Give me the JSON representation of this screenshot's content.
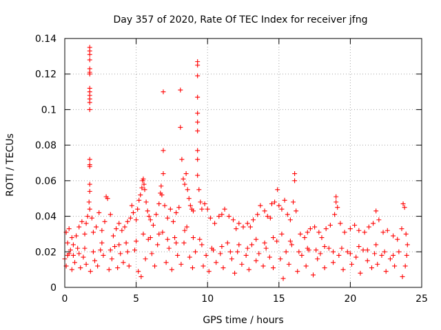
{
  "chart_data": {
    "type": "scatter",
    "title": "Day 357 of 2020, Rate Of TEC Index for receiver jfng",
    "xlabel": "GPS time / hours",
    "ylabel": "ROTI / TECUs",
    "xlim": [
      0,
      25
    ],
    "ylim": [
      0,
      0.14
    ],
    "xticks": [
      0,
      5,
      10,
      15,
      20,
      25
    ],
    "xtick_labels": [
      "0",
      "5",
      "10",
      "15",
      "20",
      "25"
    ],
    "yticks": [
      0,
      0.02,
      0.04,
      0.06,
      0.08,
      0.1,
      0.12,
      0.14
    ],
    "ytick_labels": [
      "0",
      "0.02",
      "0.04",
      "0.06",
      "0.08",
      "0.1",
      "0.12",
      "0.14"
    ],
    "grid": true,
    "marker": "+",
    "color": "#ff0000",
    "series": [
      {
        "name": "ROTI",
        "points": [
          [
            0.0,
            0.016
          ],
          [
            0.1,
            0.031
          ],
          [
            0.2,
            0.025
          ],
          [
            0.3,
            0.033
          ],
          [
            0.4,
            0.021
          ],
          [
            0.5,
            0.028
          ],
          [
            0.6,
            0.018
          ],
          [
            0.8,
            0.029
          ],
          [
            1.0,
            0.034
          ],
          [
            1.2,
            0.037
          ],
          [
            1.4,
            0.03
          ],
          [
            1.5,
            0.036
          ],
          [
            1.6,
            0.04
          ],
          [
            1.7,
            0.048
          ],
          [
            1.75,
            0.135
          ],
          [
            1.75,
            0.133
          ],
          [
            1.75,
            0.131
          ],
          [
            1.75,
            0.128
          ],
          [
            1.75,
            0.123
          ],
          [
            1.75,
            0.121
          ],
          [
            1.75,
            0.12
          ],
          [
            1.75,
            0.112
          ],
          [
            1.75,
            0.11
          ],
          [
            1.75,
            0.108
          ],
          [
            1.75,
            0.106
          ],
          [
            1.75,
            0.104
          ],
          [
            1.75,
            0.1
          ],
          [
            1.75,
            0.072
          ],
          [
            1.75,
            0.069
          ],
          [
            1.75,
            0.068
          ],
          [
            1.75,
            0.058
          ],
          [
            1.75,
            0.054
          ],
          [
            1.75,
            0.044
          ],
          [
            1.9,
            0.039
          ],
          [
            2.0,
            0.031
          ],
          [
            2.2,
            0.034
          ],
          [
            2.4,
            0.042
          ],
          [
            2.6,
            0.032
          ],
          [
            2.8,
            0.037
          ],
          [
            2.9,
            0.051
          ],
          [
            3.0,
            0.05
          ],
          [
            3.2,
            0.041
          ],
          [
            3.4,
            0.029
          ],
          [
            3.6,
            0.033
          ],
          [
            3.8,
            0.036
          ],
          [
            4.0,
            0.032
          ],
          [
            4.2,
            0.034
          ],
          [
            4.4,
            0.037
          ],
          [
            4.6,
            0.039
          ],
          [
            4.7,
            0.046
          ],
          [
            4.8,
            0.042
          ],
          [
            5.0,
            0.038
          ],
          [
            5.1,
            0.044
          ],
          [
            5.2,
            0.049
          ],
          [
            5.3,
            0.052
          ],
          [
            5.4,
            0.056
          ],
          [
            5.45,
            0.06
          ],
          [
            5.5,
            0.061
          ],
          [
            5.55,
            0.058
          ],
          [
            5.6,
            0.055
          ],
          [
            5.7,
            0.048
          ],
          [
            5.8,
            0.043
          ],
          [
            5.9,
            0.04
          ],
          [
            6.0,
            0.038
          ],
          [
            6.2,
            0.035
          ],
          [
            6.4,
            0.041
          ],
          [
            6.6,
            0.047
          ],
          [
            6.7,
            0.053
          ],
          [
            6.75,
            0.057
          ],
          [
            6.8,
            0.052
          ],
          [
            6.9,
            0.11
          ],
          [
            6.9,
            0.077
          ],
          [
            6.9,
            0.064
          ],
          [
            7.0,
            0.046
          ],
          [
            7.2,
            0.039
          ],
          [
            7.4,
            0.044
          ],
          [
            7.6,
            0.037
          ],
          [
            7.8,
            0.042
          ],
          [
            8.0,
            0.045
          ],
          [
            8.1,
            0.111
          ],
          [
            8.1,
            0.09
          ],
          [
            8.2,
            0.072
          ],
          [
            8.3,
            0.061
          ],
          [
            8.4,
            0.058
          ],
          [
            8.5,
            0.064
          ],
          [
            8.6,
            0.055
          ],
          [
            8.7,
            0.05
          ],
          [
            8.8,
            0.046
          ],
          [
            8.9,
            0.044
          ],
          [
            9.0,
            0.043
          ],
          [
            9.3,
            0.127
          ],
          [
            9.3,
            0.125
          ],
          [
            9.3,
            0.119
          ],
          [
            9.3,
            0.107
          ],
          [
            9.3,
            0.098
          ],
          [
            9.3,
            0.093
          ],
          [
            9.3,
            0.088
          ],
          [
            9.3,
            0.077
          ],
          [
            9.3,
            0.072
          ],
          [
            9.3,
            0.063
          ],
          [
            9.4,
            0.055
          ],
          [
            9.5,
            0.048
          ],
          [
            9.6,
            0.044
          ],
          [
            9.8,
            0.047
          ],
          [
            10.0,
            0.044
          ],
          [
            10.2,
            0.039
          ],
          [
            10.5,
            0.036
          ],
          [
            10.8,
            0.04
          ],
          [
            11.0,
            0.041
          ],
          [
            11.2,
            0.044
          ],
          [
            11.5,
            0.04
          ],
          [
            11.8,
            0.038
          ],
          [
            12.0,
            0.033
          ],
          [
            12.2,
            0.036
          ],
          [
            12.5,
            0.034
          ],
          [
            12.8,
            0.036
          ],
          [
            13.0,
            0.034
          ],
          [
            13.2,
            0.038
          ],
          [
            13.5,
            0.041
          ],
          [
            13.7,
            0.046
          ],
          [
            14.0,
            0.043
          ],
          [
            14.2,
            0.04
          ],
          [
            14.4,
            0.039
          ],
          [
            14.5,
            0.047
          ],
          [
            14.7,
            0.048
          ],
          [
            14.9,
            0.055
          ],
          [
            15.0,
            0.046
          ],
          [
            15.2,
            0.044
          ],
          [
            15.4,
            0.049
          ],
          [
            15.6,
            0.041
          ],
          [
            15.8,
            0.038
          ],
          [
            16.0,
            0.048
          ],
          [
            16.1,
            0.064
          ],
          [
            16.1,
            0.06
          ],
          [
            16.2,
            0.043
          ],
          [
            16.5,
            0.03
          ],
          [
            16.8,
            0.028
          ],
          [
            17.0,
            0.031
          ],
          [
            17.2,
            0.033
          ],
          [
            17.5,
            0.034
          ],
          [
            17.8,
            0.031
          ],
          [
            18.0,
            0.028
          ],
          [
            18.3,
            0.033
          ],
          [
            18.6,
            0.035
          ],
          [
            18.9,
            0.041
          ],
          [
            19.0,
            0.051
          ],
          [
            19.0,
            0.048
          ],
          [
            19.1,
            0.045
          ],
          [
            19.3,
            0.036
          ],
          [
            19.6,
            0.031
          ],
          [
            20.0,
            0.033
          ],
          [
            20.3,
            0.035
          ],
          [
            20.6,
            0.032
          ],
          [
            21.0,
            0.031
          ],
          [
            21.3,
            0.034
          ],
          [
            21.6,
            0.036
          ],
          [
            21.8,
            0.043
          ],
          [
            22.0,
            0.038
          ],
          [
            22.3,
            0.031
          ],
          [
            22.6,
            0.032
          ],
          [
            23.0,
            0.029
          ],
          [
            23.3,
            0.027
          ],
          [
            23.6,
            0.033
          ],
          [
            23.7,
            0.047
          ],
          [
            23.8,
            0.045
          ],
          [
            23.9,
            0.03
          ],
          [
            24.0,
            0.024
          ],
          [
            0.1,
            0.012
          ],
          [
            0.3,
            0.019
          ],
          [
            0.5,
            0.01
          ],
          [
            0.7,
            0.014
          ],
          [
            0.9,
            0.022
          ],
          [
            1.1,
            0.011
          ],
          [
            1.3,
            0.017
          ],
          [
            1.5,
            0.013
          ],
          [
            1.8,
            0.009
          ],
          [
            2.1,
            0.015
          ],
          [
            2.3,
            0.012
          ],
          [
            2.5,
            0.021
          ],
          [
            2.7,
            0.018
          ],
          [
            3.1,
            0.01
          ],
          [
            3.3,
            0.016
          ],
          [
            3.5,
            0.023
          ],
          [
            3.7,
            0.011
          ],
          [
            3.9,
            0.019
          ],
          [
            4.1,
            0.014
          ],
          [
            4.3,
            0.025
          ],
          [
            4.5,
            0.012
          ],
          [
            4.9,
            0.021
          ],
          [
            5.15,
            0.009
          ],
          [
            5.35,
            0.006
          ],
          [
            5.65,
            0.016
          ],
          [
            5.85,
            0.027
          ],
          [
            6.1,
            0.019
          ],
          [
            6.3,
            0.012
          ],
          [
            6.5,
            0.024
          ],
          [
            6.85,
            0.031
          ],
          [
            7.1,
            0.014
          ],
          [
            7.3,
            0.022
          ],
          [
            7.5,
            0.01
          ],
          [
            7.7,
            0.028
          ],
          [
            7.9,
            0.018
          ],
          [
            8.15,
            0.013
          ],
          [
            8.35,
            0.025
          ],
          [
            8.55,
            0.034
          ],
          [
            8.75,
            0.017
          ],
          [
            8.95,
            0.011
          ],
          [
            9.15,
            0.02
          ],
          [
            9.45,
            0.027
          ],
          [
            9.7,
            0.012
          ],
          [
            9.9,
            0.018
          ],
          [
            10.1,
            0.009
          ],
          [
            10.3,
            0.022
          ],
          [
            10.6,
            0.014
          ],
          [
            10.9,
            0.019
          ],
          [
            11.1,
            0.011
          ],
          [
            11.4,
            0.025
          ],
          [
            11.7,
            0.016
          ],
          [
            11.9,
            0.008
          ],
          [
            12.1,
            0.02
          ],
          [
            12.4,
            0.013
          ],
          [
            12.7,
            0.018
          ],
          [
            12.9,
            0.01
          ],
          [
            13.1,
            0.024
          ],
          [
            13.4,
            0.015
          ],
          [
            13.6,
            0.019
          ],
          [
            13.9,
            0.012
          ],
          [
            14.1,
            0.022
          ],
          [
            14.35,
            0.017
          ],
          [
            14.6,
            0.011
          ],
          [
            14.85,
            0.026
          ],
          [
            15.1,
            0.016
          ],
          [
            15.3,
            0.005
          ],
          [
            15.5,
            0.02
          ],
          [
            15.7,
            0.013
          ],
          [
            15.9,
            0.024
          ],
          [
            16.3,
            0.009
          ],
          [
            16.6,
            0.018
          ],
          [
            16.9,
            0.012
          ],
          [
            17.1,
            0.021
          ],
          [
            17.4,
            0.007
          ],
          [
            17.7,
            0.016
          ],
          [
            17.9,
            0.019
          ],
          [
            18.2,
            0.011
          ],
          [
            18.5,
            0.022
          ],
          [
            18.8,
            0.014
          ],
          [
            19.2,
            0.018
          ],
          [
            19.5,
            0.01
          ],
          [
            19.8,
            0.02
          ],
          [
            20.1,
            0.013
          ],
          [
            20.4,
            0.017
          ],
          [
            20.7,
            0.008
          ],
          [
            20.9,
            0.021
          ],
          [
            21.2,
            0.015
          ],
          [
            21.5,
            0.011
          ],
          [
            21.7,
            0.019
          ],
          [
            21.9,
            0.013
          ],
          [
            22.2,
            0.018
          ],
          [
            22.5,
            0.009
          ],
          [
            22.8,
            0.016
          ],
          [
            23.1,
            0.012
          ],
          [
            23.4,
            0.02
          ],
          [
            23.65,
            0.006
          ],
          [
            23.85,
            0.012
          ],
          [
            23.95,
            0.018
          ],
          [
            0.2,
            0.018
          ],
          [
            0.6,
            0.024
          ],
          [
            1.0,
            0.019
          ],
          [
            1.4,
            0.022
          ],
          [
            2.0,
            0.02
          ],
          [
            2.6,
            0.025
          ],
          [
            3.2,
            0.021
          ],
          [
            3.8,
            0.024
          ],
          [
            4.4,
            0.02
          ],
          [
            5.0,
            0.026
          ],
          [
            5.5,
            0.03
          ],
          [
            6.0,
            0.028
          ],
          [
            6.6,
            0.03
          ],
          [
            7.2,
            0.027
          ],
          [
            7.8,
            0.025
          ],
          [
            8.4,
            0.032
          ],
          [
            9.0,
            0.028
          ],
          [
            9.6,
            0.024
          ],
          [
            10.4,
            0.021
          ],
          [
            11.0,
            0.023
          ],
          [
            11.6,
            0.02
          ],
          [
            12.2,
            0.024
          ],
          [
            12.8,
            0.022
          ],
          [
            13.4,
            0.027
          ],
          [
            14.0,
            0.025
          ],
          [
            14.6,
            0.028
          ],
          [
            15.2,
            0.03
          ],
          [
            15.8,
            0.026
          ],
          [
            16.4,
            0.02
          ],
          [
            17.0,
            0.022
          ],
          [
            17.6,
            0.021
          ],
          [
            18.2,
            0.023
          ],
          [
            18.8,
            0.02
          ],
          [
            19.4,
            0.022
          ],
          [
            20.0,
            0.019
          ],
          [
            20.6,
            0.023
          ],
          [
            21.2,
            0.021
          ],
          [
            21.8,
            0.024
          ],
          [
            22.4,
            0.02
          ],
          [
            23.0,
            0.018
          ]
        ]
      }
    ]
  }
}
